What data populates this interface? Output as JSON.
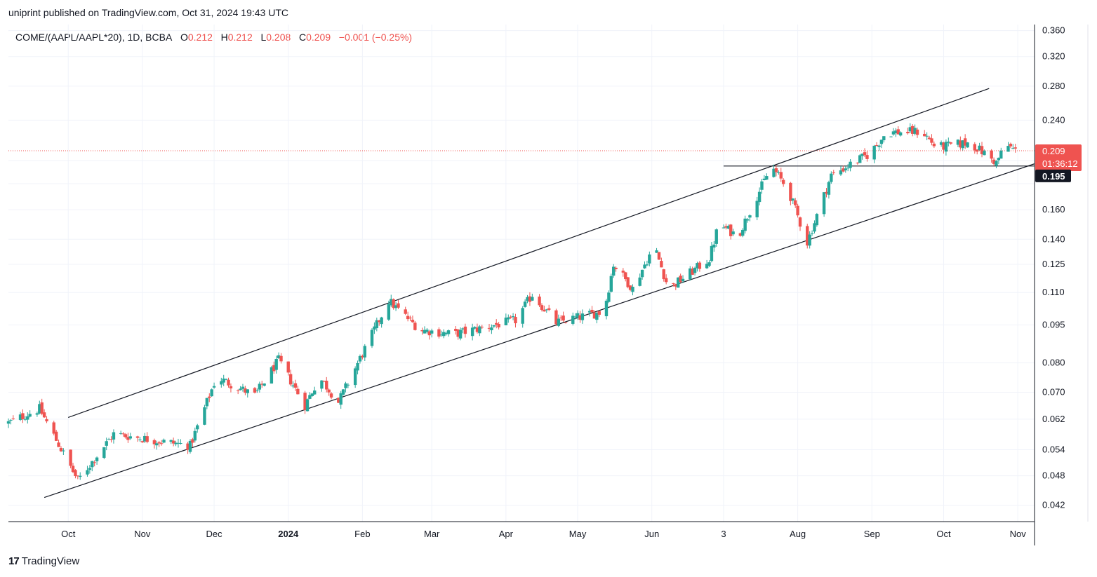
{
  "header": {
    "published_text": "uniprint published on TradingView.com, Oct 31, 2024 19:43 UTC"
  },
  "legend": {
    "symbol": "COME/(AAPL/AAPL*20), 1D, BCBA",
    "o_label": "O",
    "o_value": "0.212",
    "h_label": "H",
    "h_value": "0.212",
    "l_label": "L",
    "l_value": "0.208",
    "c_label": "C",
    "c_value": "0.209",
    "change": "−0.001 (−0.25%)"
  },
  "footer": {
    "brand": "TradingView"
  },
  "colors": {
    "up": "#26a69a",
    "down": "#ef5350",
    "grid": "#f0f3fa",
    "line": "#131722",
    "price_label": "#ef5350",
    "level_label": "#131722"
  },
  "chart_data": {
    "type": "candlestick",
    "scale": "log",
    "ylim": [
      0.039,
      0.37
    ],
    "y_ticks": [
      "0.360",
      "0.320",
      "0.280",
      "0.240",
      "0.200",
      "0.180",
      "0.160",
      "0.140",
      "0.125",
      "0.110",
      "0.095",
      "0.080",
      "0.070",
      "0.062",
      "0.054",
      "0.048",
      "0.042"
    ],
    "y_ticks_hidden": [
      "0.200",
      "0.180"
    ],
    "x_ticks": [
      {
        "date": "2023-10-01",
        "label": "Oct"
      },
      {
        "date": "2023-11-01",
        "label": "Nov"
      },
      {
        "date": "2023-12-01",
        "label": "Dec"
      },
      {
        "date": "2024-01-01",
        "label": "2024",
        "bold": true
      },
      {
        "date": "2024-02-01",
        "label": "Feb"
      },
      {
        "date": "2024-03-01",
        "label": "Mar"
      },
      {
        "date": "2024-04-01",
        "label": "Apr"
      },
      {
        "date": "2024-05-01",
        "label": "May"
      },
      {
        "date": "2024-06-01",
        "label": "Jun"
      },
      {
        "date": "2024-07-01",
        "label": "3"
      },
      {
        "date": "2024-08-01",
        "label": "Aug"
      },
      {
        "date": "2024-09-01",
        "label": "Sep"
      },
      {
        "date": "2024-10-01",
        "label": "Oct"
      },
      {
        "date": "2024-11-01",
        "label": "Nov"
      }
    ],
    "x_range": [
      "2023-09-06",
      "2024-11-08"
    ],
    "price_line": {
      "value": 0.209,
      "label": "0.209",
      "countdown": "01:36:12"
    },
    "level_line": {
      "value": 0.195,
      "label": "0.195",
      "from_date": "2024-07-01"
    },
    "channel": {
      "upper": [
        {
          "date": "2023-10-01",
          "value": 0.0625
        },
        {
          "date": "2024-10-20",
          "value": 0.277
        }
      ],
      "lower": [
        {
          "date": "2023-09-21",
          "value": 0.0435
        },
        {
          "date": "2024-11-08",
          "value": 0.197
        }
      ]
    },
    "anchors": [
      {
        "date": "2023-09-06",
        "value": 0.061
      },
      {
        "date": "2023-09-19",
        "value": 0.065
      },
      {
        "date": "2023-10-05",
        "value": 0.047
      },
      {
        "date": "2023-10-20",
        "value": 0.058
      },
      {
        "date": "2023-11-10",
        "value": 0.056
      },
      {
        "date": "2023-11-21",
        "value": 0.055
      },
      {
        "date": "2023-12-02",
        "value": 0.075
      },
      {
        "date": "2023-12-18",
        "value": 0.069
      },
      {
        "date": "2023-12-28",
        "value": 0.081
      },
      {
        "date": "2024-01-08",
        "value": 0.066
      },
      {
        "date": "2024-01-14",
        "value": 0.075
      },
      {
        "date": "2024-01-22",
        "value": 0.067
      },
      {
        "date": "2024-02-12",
        "value": 0.106
      },
      {
        "date": "2024-02-25",
        "value": 0.093
      },
      {
        "date": "2024-03-10",
        "value": 0.091
      },
      {
        "date": "2024-04-05",
        "value": 0.097
      },
      {
        "date": "2024-04-12",
        "value": 0.109
      },
      {
        "date": "2024-04-22",
        "value": 0.096
      },
      {
        "date": "2024-05-12",
        "value": 0.101
      },
      {
        "date": "2024-05-16",
        "value": 0.125
      },
      {
        "date": "2024-05-24",
        "value": 0.112
      },
      {
        "date": "2024-06-02",
        "value": 0.136
      },
      {
        "date": "2024-06-08",
        "value": 0.112
      },
      {
        "date": "2024-06-25",
        "value": 0.128
      },
      {
        "date": "2024-06-29",
        "value": 0.15
      },
      {
        "date": "2024-07-07",
        "value": 0.142
      },
      {
        "date": "2024-07-21",
        "value": 0.195
      },
      {
        "date": "2024-07-28",
        "value": 0.175
      },
      {
        "date": "2024-08-05",
        "value": 0.138
      },
      {
        "date": "2024-08-15",
        "value": 0.187
      },
      {
        "date": "2024-08-31",
        "value": 0.206
      },
      {
        "date": "2024-09-07",
        "value": 0.227
      },
      {
        "date": "2024-09-22",
        "value": 0.228
      },
      {
        "date": "2024-09-28",
        "value": 0.212
      },
      {
        "date": "2024-10-12",
        "value": 0.217
      },
      {
        "date": "2024-10-23",
        "value": 0.198
      },
      {
        "date": "2024-10-27",
        "value": 0.215
      },
      {
        "date": "2024-10-31",
        "value": 0.209
      }
    ]
  }
}
